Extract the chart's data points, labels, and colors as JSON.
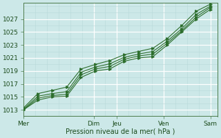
{
  "title": "",
  "xlabel": "Pression niveau de la mer( hPa )",
  "ylabel": "",
  "bg_color": "#cce8e8",
  "grid_major_color": "#ffffff",
  "grid_minor_color": "#b8d8d8",
  "line_color": "#2d6e2d",
  "ylim": [
    1012.5,
    1029.5
  ],
  "yticks": [
    1013,
    1015,
    1017,
    1019,
    1021,
    1023,
    1025,
    1027
  ],
  "x_day_labels": [
    "Mer",
    "Dim",
    "Jeu",
    "Ven",
    "Sam"
  ],
  "x_day_positions": [
    0,
    3.0,
    4.0,
    6.0,
    8.0
  ],
  "xlim": [
    0,
    8.3
  ],
  "n_points": 14,
  "series": [
    [
      1013.0,
      1014.5,
      1015.0,
      1015.1,
      1018.0,
      1019.0,
      1019.3,
      1020.5,
      1021.0,
      1021.2,
      1023.0,
      1025.0,
      1027.0,
      1028.5
    ],
    [
      1013.0,
      1014.8,
      1015.2,
      1015.4,
      1018.4,
      1019.3,
      1019.7,
      1020.8,
      1021.3,
      1021.6,
      1023.3,
      1025.2,
      1027.3,
      1028.8
    ],
    [
      1013.1,
      1015.1,
      1015.5,
      1015.8,
      1018.8,
      1019.6,
      1020.1,
      1021.1,
      1021.6,
      1022.0,
      1023.6,
      1025.5,
      1027.7,
      1029.0
    ],
    [
      1013.3,
      1015.5,
      1016.0,
      1016.5,
      1019.3,
      1020.0,
      1020.6,
      1021.5,
      1022.0,
      1022.5,
      1024.0,
      1026.0,
      1028.2,
      1029.3
    ]
  ]
}
